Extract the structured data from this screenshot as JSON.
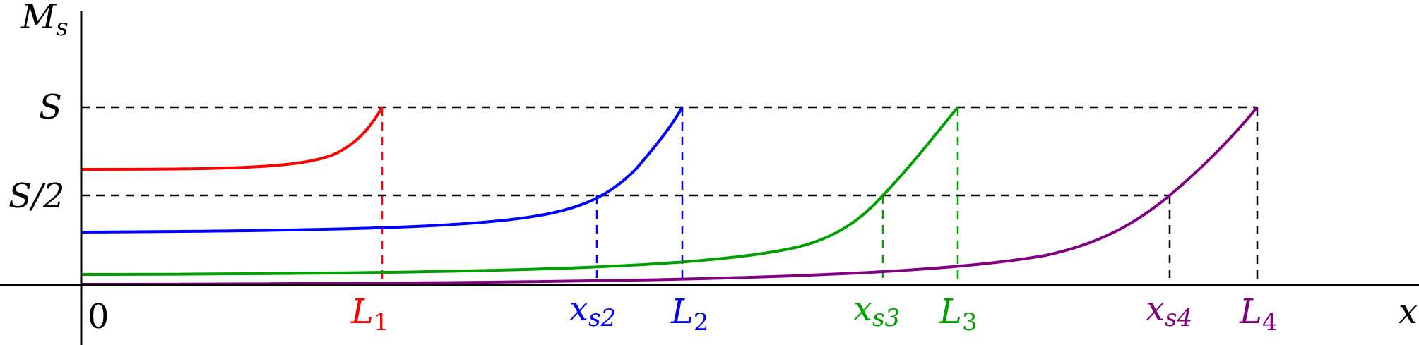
{
  "diagram": {
    "y_axis_label": "M",
    "y_axis_label_sub": "s",
    "x_axis_label": "x",
    "origin_label": "0",
    "level_labels": {
      "top": "S",
      "half": "S/2"
    },
    "colors": {
      "axis": "#000000",
      "guide": "#000000"
    },
    "curves": [
      {
        "name": "red",
        "color": "#ff0000",
        "L_main": "L",
        "L_sub": "1",
        "xs_main": "",
        "xs_sub": ""
      },
      {
        "name": "blue",
        "color": "#0000ff",
        "L_main": "L",
        "L_sub": "2",
        "xs_main": "x",
        "xs_sub": "s2"
      },
      {
        "name": "green",
        "color": "#00a000",
        "L_main": "L",
        "L_sub": "3",
        "xs_main": "x",
        "xs_sub": "s3"
      },
      {
        "name": "purple",
        "color": "#800080",
        "L_main": "L",
        "L_sub": "4",
        "xs_main": "x",
        "xs_sub": "s4"
      }
    ]
  }
}
